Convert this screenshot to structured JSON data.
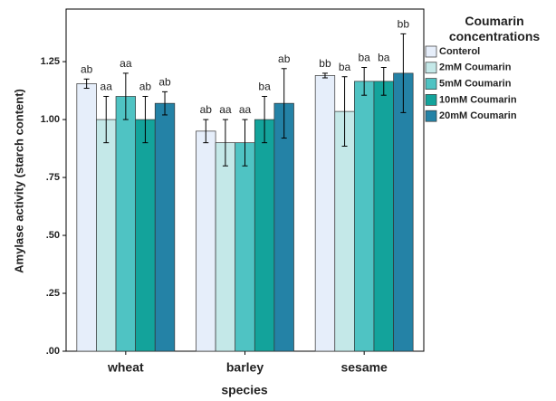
{
  "chart_data": {
    "type": "bar",
    "x_label": "species",
    "y_label": "Amylase activity (starch content)",
    "legend_title": "Coumarin concentrations",
    "categories": [
      "wheat",
      "barley",
      "sesame"
    ],
    "series": [
      {
        "name": "Conterol",
        "color": "#e6eefa",
        "values": [
          1.155,
          0.95,
          1.19
        ],
        "errors": [
          0.02,
          0.05,
          0.01
        ],
        "letters": [
          "ab",
          "ab",
          "bb"
        ]
      },
      {
        "name": "2mM Coumarin",
        "color": "#c4e8e8",
        "values": [
          1.0,
          0.9,
          1.035
        ],
        "errors": [
          0.1,
          0.1,
          0.15
        ],
        "letters": [
          "aa",
          "aa",
          "ba"
        ]
      },
      {
        "name": "5mM Coumarin",
        "color": "#4fc3c3",
        "values": [
          1.1,
          0.9,
          1.165
        ],
        "errors": [
          0.1,
          0.1,
          0.06
        ],
        "letters": [
          "aa",
          "aa",
          "ba"
        ]
      },
      {
        "name": "10mM Coumarin",
        "color": "#13a39b",
        "values": [
          1.0,
          1.0,
          1.165
        ],
        "errors": [
          0.1,
          0.1,
          0.06
        ],
        "letters": [
          "ab",
          "ba",
          "ba"
        ]
      },
      {
        "name": "20mM Coumarin",
        "color": "#2482a6",
        "values": [
          1.07,
          1.07,
          1.2
        ],
        "errors": [
          0.05,
          0.15,
          0.17
        ],
        "letters": [
          "ab",
          "ab",
          "bb"
        ]
      }
    ],
    "ylim": [
      0,
      1.477
    ],
    "yticks": [
      {
        "value": 0,
        "label": ".00"
      },
      {
        "value": 0.25,
        "label": ".25"
      },
      {
        "value": 0.5,
        "label": ".50"
      },
      {
        "value": 0.75,
        "label": ".75"
      },
      {
        "value": 1,
        "label": "1.00"
      },
      1.25
    ]
  }
}
